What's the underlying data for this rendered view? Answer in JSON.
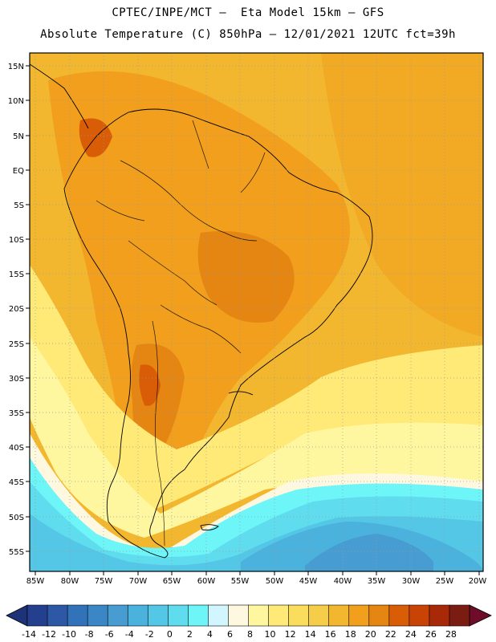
{
  "header": {
    "line1": "CPTEC/INPE/MCT —  Eta Model 15km — GFS",
    "line2": "Absolute Temperature (C) 850hPa — 12/01/2021 12UTC fct=39h"
  },
  "map": {
    "lat_labels": [
      "15N",
      "10N",
      "5N",
      "EQ",
      "5S",
      "10S",
      "15S",
      "20S",
      "25S",
      "30S",
      "35S",
      "40S",
      "45S",
      "50S",
      "55S"
    ],
    "lon_labels": [
      "85W",
      "80W",
      "75W",
      "70W",
      "65W",
      "60W",
      "55W",
      "50W",
      "45W",
      "40W",
      "35W",
      "30W",
      "25W",
      "20W"
    ]
  },
  "colorbar": {
    "labels": [
      "-14",
      "-12",
      "-10",
      "-8",
      "-6",
      "-4",
      "-2",
      "0",
      "2",
      "4",
      "6",
      "8",
      "10",
      "12",
      "14",
      "16",
      "18",
      "20",
      "22",
      "24",
      "26",
      "28"
    ],
    "colors": [
      "#233f8d",
      "#2c58a6",
      "#3272b8",
      "#3b86c4",
      "#479cd1",
      "#4ab2dc",
      "#55c7e6",
      "#5fdcee",
      "#6ef5f8",
      "#d2f6ff",
      "#fff8e0",
      "#fff7a0",
      "#ffea78",
      "#fbdd5e",
      "#f6cd48",
      "#f3b72f",
      "#f19f1c",
      "#e58512",
      "#d95c07",
      "#c94206",
      "#a72907",
      "#7b1c13"
    ],
    "left_color": "#1e3278",
    "right_color": "#6e0d2a"
  }
}
